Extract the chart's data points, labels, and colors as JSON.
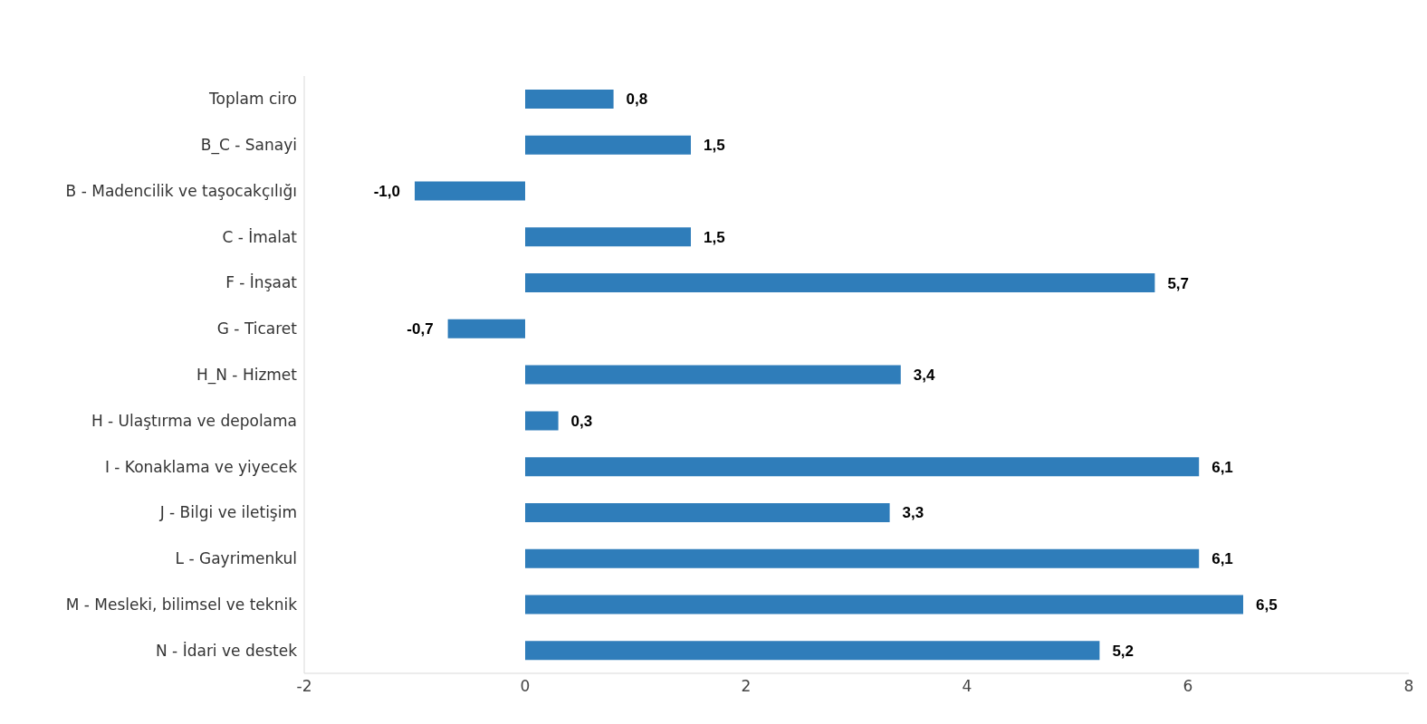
{
  "chart_data": {
    "type": "bar",
    "orientation": "horizontal",
    "categories": [
      "Toplam ciro",
      "B_C - Sanayi",
      "B - Madencilik ve taşocakçılığı",
      "C - İmalat",
      "F - İnşaat",
      "G - Ticaret",
      "H_N - Hizmet",
      "H - Ulaştırma ve depolama",
      "I - Konaklama ve yiyecek",
      "J - Bilgi ve iletişim",
      "L - Gayrimenkul",
      "M - Mesleki, bilimsel ve teknik",
      "N - İdari ve destek"
    ],
    "values": [
      0.8,
      1.5,
      -1.0,
      1.5,
      5.7,
      -0.7,
      3.4,
      0.3,
      6.1,
      3.3,
      6.1,
      6.5,
      5.2
    ],
    "value_labels": [
      "0,8",
      "1,5",
      "-1,0",
      "1,5",
      "5,7",
      "-0,7",
      "3,4",
      "0,3",
      "6,1",
      "3,3",
      "6,1",
      "6,5",
      "5,2"
    ],
    "color": "#2f7dba",
    "xlim": [
      -2,
      8
    ],
    "xticks": [
      -2,
      0,
      2,
      4,
      6,
      8
    ],
    "grid": false,
    "legend": false
  }
}
